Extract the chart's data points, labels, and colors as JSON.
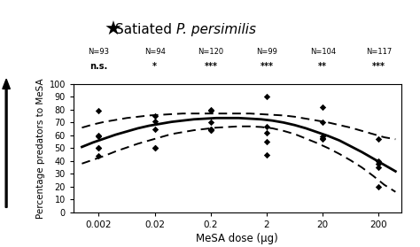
{
  "title_normal": "Satiated ",
  "title_italic": "P. persimilis",
  "xlabel": "MeSA dose (μg)",
  "ylabel": "Percentage predators to MeSA",
  "x_doses_labels": [
    "0.002",
    "0.02",
    "0.2",
    "2",
    "20",
    "200"
  ],
  "x_log_positions": [
    -2.699,
    -1.699,
    -0.699,
    0.301,
    1.301,
    2.301
  ],
  "n_labels": [
    "N=93",
    "N=94",
    "N=120",
    "N=99",
    "N=104",
    "N=117"
  ],
  "sig_labels": [
    "n.s.",
    "*",
    "***",
    "***",
    "**",
    "***"
  ],
  "ylim": [
    0,
    100
  ],
  "yticks": [
    0,
    10,
    20,
    30,
    40,
    50,
    60,
    70,
    80,
    90,
    100
  ],
  "xlim": [
    -3.15,
    2.7
  ],
  "scatter_x": [
    -2.699,
    -2.699,
    -2.699,
    -2.699,
    -2.699,
    -2.699,
    -1.699,
    -1.699,
    -1.699,
    -1.699,
    -1.699,
    -0.699,
    -0.699,
    -0.699,
    -0.699,
    -0.699,
    -0.699,
    -0.699,
    0.301,
    0.301,
    0.301,
    0.301,
    0.301,
    1.301,
    1.301,
    1.301,
    1.301,
    1.301,
    2.301,
    2.301,
    2.301,
    2.301,
    2.301
  ],
  "scatter_y": [
    79,
    60,
    59,
    50,
    50,
    44,
    75,
    71,
    65,
    50,
    50,
    80,
    79,
    70,
    65,
    65,
    64,
    64,
    90,
    67,
    62,
    55,
    45,
    82,
    70,
    59,
    58,
    57,
    57,
    40,
    38,
    35,
    20
  ],
  "fit_x": [
    -3.0,
    -2.8,
    -2.6,
    -2.4,
    -2.2,
    -2.0,
    -1.8,
    -1.6,
    -1.4,
    -1.2,
    -1.0,
    -0.8,
    -0.6,
    -0.4,
    -0.2,
    0.0,
    0.2,
    0.4,
    0.6,
    0.8,
    1.0,
    1.2,
    1.4,
    1.6,
    1.8,
    2.0,
    2.2,
    2.4,
    2.6
  ],
  "fit_y": [
    51.0,
    54.5,
    57.5,
    60.5,
    63.0,
    65.5,
    67.5,
    69.0,
    70.5,
    71.5,
    72.5,
    73.0,
    73.5,
    73.5,
    73.5,
    73.0,
    72.5,
    71.5,
    70.0,
    68.0,
    65.5,
    62.5,
    59.5,
    56.0,
    51.5,
    47.0,
    42.0,
    37.0,
    32.0
  ],
  "fit_upper": [
    66.0,
    68.5,
    70.5,
    72.0,
    73.5,
    74.5,
    75.5,
    76.0,
    76.5,
    77.0,
    77.0,
    77.0,
    77.0,
    77.0,
    77.0,
    77.0,
    76.5,
    76.0,
    75.5,
    74.5,
    73.0,
    71.5,
    70.0,
    68.0,
    66.0,
    63.5,
    61.0,
    58.5,
    57.0
  ],
  "fit_lower": [
    38.0,
    41.0,
    44.0,
    47.5,
    50.5,
    53.5,
    56.0,
    58.5,
    61.0,
    62.5,
    64.0,
    65.0,
    66.0,
    66.5,
    67.0,
    67.0,
    66.5,
    65.5,
    63.5,
    61.0,
    57.5,
    54.0,
    50.0,
    45.5,
    40.5,
    35.0,
    28.5,
    21.5,
    16.0
  ],
  "curve_color": "#000000",
  "scatter_color": "#000000",
  "bg_color": "#ffffff"
}
